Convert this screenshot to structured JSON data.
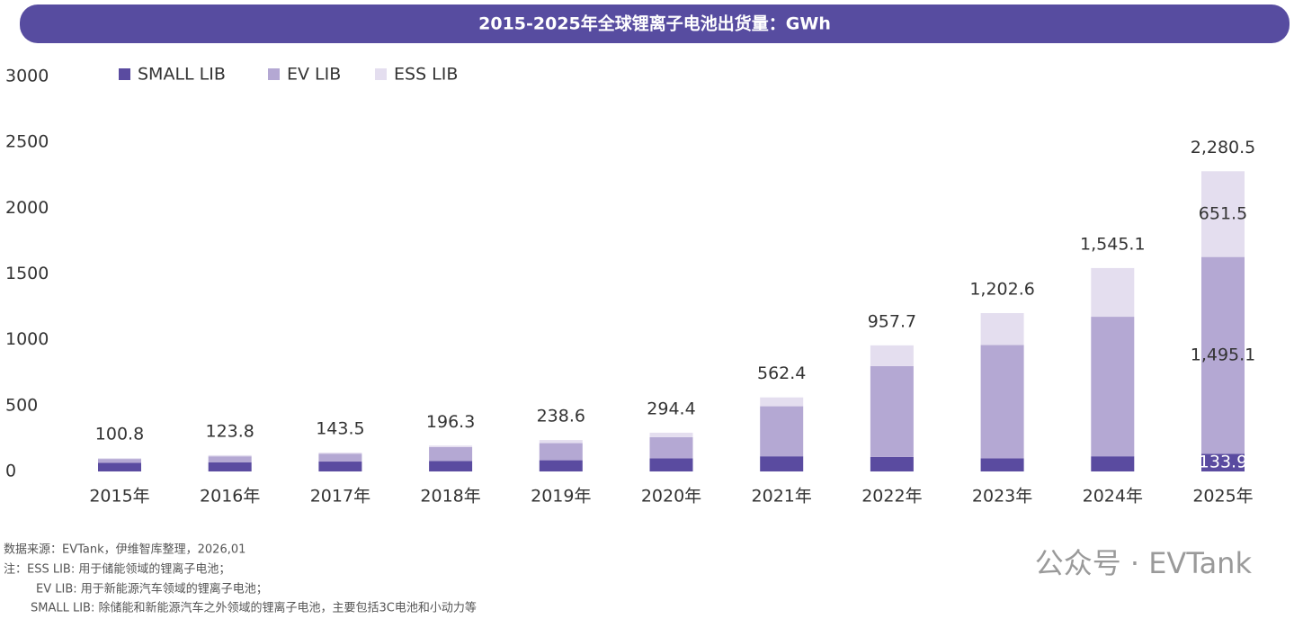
{
  "chart_data": {
    "type": "stacked_bar",
    "title": "2015-2025年全球锂离子电池出货量：GWh",
    "categories": [
      "2015年",
      "2016年",
      "2017年",
      "2018年",
      "2019年",
      "2020年",
      "2021年",
      "2022年",
      "2023年",
      "2024年",
      "2025年"
    ],
    "series": [
      {
        "name": "SMALL LIB",
        "color": "#5a4ba0",
        "values": [
          65,
          70,
          75,
          80,
          85,
          100,
          115,
          110,
          100,
          115,
          133.9
        ],
        "value_labels": [
          null,
          null,
          null,
          null,
          null,
          null,
          null,
          null,
          null,
          null,
          "133.9"
        ]
      },
      {
        "name": "EV LIB",
        "color": "#b4a8d3",
        "values": [
          30,
          45,
          60,
          105,
          130,
          160,
          380,
          690,
          860,
          1060,
          1495.1
        ],
        "value_labels": [
          null,
          null,
          null,
          null,
          null,
          null,
          null,
          null,
          null,
          null,
          "1,495.1"
        ]
      },
      {
        "name": "ESS LIB",
        "color": "#e4deef",
        "values": [
          5.8,
          8.8,
          8.5,
          11.3,
          23.6,
          34.4,
          67.4,
          157.7,
          242.6,
          370.1,
          651.5
        ],
        "value_labels": [
          null,
          null,
          null,
          null,
          null,
          null,
          null,
          null,
          null,
          null,
          "651.5"
        ]
      }
    ],
    "totals": [
      100.8,
      123.8,
      143.5,
      196.3,
      238.6,
      294.4,
      562.4,
      957.7,
      1202.6,
      1545.1,
      2280.5
    ],
    "total_labels": [
      "100.8",
      "123.8",
      "143.5",
      "196.3",
      "238.6",
      "294.4",
      "562.4",
      "957.7",
      "1,202.6",
      "1,545.1",
      "2,280.5"
    ],
    "ylim": [
      0,
      3000
    ],
    "yticks": [
      0,
      500,
      1000,
      1500,
      2000,
      2500,
      3000
    ],
    "grid": false
  },
  "footer": {
    "source": "数据来源：EVTank，伊维智库整理，2026,01",
    "notes": [
      "注：ESS LIB: 用于储能领域的锂离子电池；",
      "EV LIB: 用于新能源汽车领域的锂离子电池；",
      "SMALL LIB: 除储能和新能源汽车之外领域的锂离子电池，主要包括3C电池和小动力等"
    ],
    "watermark": "公众号 · EVTank"
  }
}
